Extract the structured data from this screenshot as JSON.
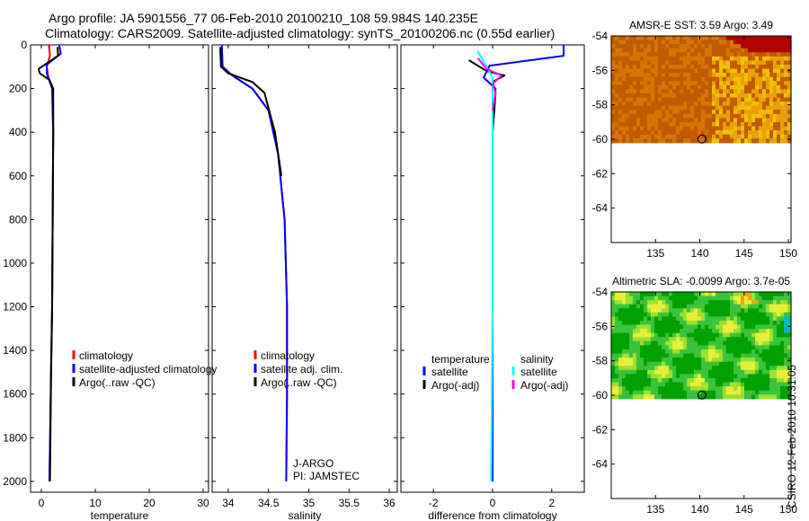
{
  "header": {
    "line1": "Argo profile: JA 5901556_77 06-Feb-2010 20100210_108 59.984S 140.235E",
    "line2": "Climatology: CARS2009. Satellite-adjusted climatology: synTS_20100206.nc (0.55d earlier)"
  },
  "stamp": "CSIRO 12-Feb-2010 10:31:05",
  "chart_data": [
    {
      "type": "line",
      "panel": "temperature",
      "xlabel": "temperature",
      "ylabel": "",
      "xlim": [
        -2,
        31
      ],
      "ylim": [
        2050,
        0
      ],
      "xticks": [
        0,
        10,
        20,
        30
      ],
      "yticks": [
        0,
        200,
        400,
        600,
        800,
        1000,
        1200,
        1400,
        1600,
        1800,
        2000
      ],
      "legend": [
        "climatology",
        "satellite-adjusted climatology",
        "Argo(..raw -QC)"
      ],
      "legend_placement": "lower-middle",
      "series": [
        {
          "name": "climatology",
          "color": "#ff0000",
          "points": [
            [
              1.4,
              0
            ],
            [
              1.6,
              50
            ],
            [
              1.0,
              100
            ],
            [
              1.3,
              150
            ],
            [
              2.0,
              200
            ],
            [
              2.2,
              400
            ],
            [
              2.1,
              800
            ],
            [
              2.0,
              1200
            ],
            [
              1.8,
              1500
            ],
            [
              1.5,
              2000
            ]
          ]
        },
        {
          "name": "satellite-adjusted climatology",
          "color": "#0000ff",
          "points": [
            [
              3.3,
              0
            ],
            [
              3.6,
              40
            ],
            [
              1.0,
              90
            ],
            [
              1.0,
              130
            ],
            [
              2.0,
              200
            ],
            [
              2.2,
              400
            ],
            [
              2.1,
              800
            ],
            [
              2.0,
              1200
            ],
            [
              1.8,
              1500
            ],
            [
              1.5,
              2000
            ]
          ]
        },
        {
          "name": "Argo(..raw -QC)",
          "color": "#000000",
          "points": [
            [
              3.0,
              10
            ],
            [
              3.1,
              50
            ],
            [
              -0.5,
              110
            ],
            [
              -0.3,
              130
            ],
            [
              1.5,
              160
            ],
            [
              2.2,
              200
            ],
            [
              2.2,
              400
            ],
            [
              2.1,
              800
            ],
            [
              2.0,
              1200
            ],
            [
              1.8,
              1500
            ],
            [
              1.6,
              2000
            ]
          ]
        }
      ]
    },
    {
      "type": "line",
      "panel": "salinity",
      "xlabel": "salinity",
      "xlim": [
        33.8,
        36.1
      ],
      "ylim": [
        2050,
        0
      ],
      "xticks": [
        34,
        34.5,
        35,
        35.5,
        36
      ],
      "legend": [
        "climatology",
        "satellite adj. clim.",
        "Argo(..raw -QC)"
      ],
      "legend_placement": "lower-middle",
      "annotation": [
        "J-ARGO",
        "PI: JAMSTEC"
      ],
      "series": [
        {
          "name": "climatology",
          "color": "#ff0000",
          "points": [
            [
              33.92,
              0
            ],
            [
              33.93,
              100
            ],
            [
              34.05,
              140
            ],
            [
              34.3,
              200
            ],
            [
              34.5,
              300
            ],
            [
              34.62,
              500
            ],
            [
              34.7,
              800
            ],
            [
              34.73,
              1200
            ],
            [
              34.73,
              1600
            ],
            [
              34.72,
              2000
            ]
          ]
        },
        {
          "name": "satellite adj. clim.",
          "color": "#0000ff",
          "points": [
            [
              33.92,
              0
            ],
            [
              33.93,
              100
            ],
            [
              34.05,
              140
            ],
            [
              34.3,
              200
            ],
            [
              34.5,
              300
            ],
            [
              34.62,
              500
            ],
            [
              34.7,
              800
            ],
            [
              34.73,
              1200
            ],
            [
              34.73,
              1600
            ],
            [
              34.72,
              2000
            ]
          ]
        },
        {
          "name": "Argo(..raw -QC)",
          "color": "#000000",
          "points": [
            [
              33.9,
              10
            ],
            [
              33.91,
              100
            ],
            [
              34.0,
              130
            ],
            [
              34.3,
              170
            ],
            [
              34.45,
              220
            ],
            [
              34.58,
              400
            ],
            [
              34.66,
              600
            ]
          ]
        }
      ]
    },
    {
      "type": "line",
      "panel": "difference",
      "xlabel": "difference from climatology",
      "xlim": [
        -3.1,
        3.1
      ],
      "ylim": [
        2050,
        0
      ],
      "xticks": [
        -2,
        0,
        2
      ],
      "legend_groups": [
        {
          "title": "temperature",
          "items": [
            "satellite",
            "Argo(-adj)"
          ]
        },
        {
          "title": "salinity",
          "items": [
            "satellite",
            "Argo(-adj)"
          ]
        }
      ],
      "series": [
        {
          "name": "temperature satellite",
          "color": "#0000ff",
          "points": [
            [
              2.4,
              0
            ],
            [
              2.4,
              50
            ],
            [
              -0.1,
              95
            ],
            [
              -0.3,
              150
            ],
            [
              0.1,
              200
            ],
            [
              0.0,
              400
            ],
            [
              0.0,
              800
            ],
            [
              0.0,
              2000
            ]
          ]
        },
        {
          "name": "temperature Argo(-adj)",
          "color": "#000000",
          "points": [
            [
              -0.8,
              70
            ],
            [
              -0.2,
              120
            ],
            [
              0.4,
              140
            ],
            [
              0.0,
              170
            ],
            [
              0.1,
              220
            ],
            [
              0.0,
              400
            ]
          ]
        },
        {
          "name": "salinity satellite",
          "color": "#00ffff",
          "points": [
            [
              -0.5,
              30
            ],
            [
              -0.2,
              100
            ],
            [
              0.0,
              150
            ],
            [
              0.0,
              400
            ],
            [
              0.0,
              1200
            ],
            [
              -0.05,
              2000
            ]
          ]
        },
        {
          "name": "salinity Argo(-adj)",
          "color": "#ff00ff",
          "points": [
            [
              -0.5,
              60
            ],
            [
              -0.2,
              110
            ],
            [
              0.3,
              140
            ],
            [
              0.0,
              180
            ],
            [
              0.1,
              220
            ],
            [
              0.0,
              300
            ]
          ]
        }
      ]
    },
    {
      "type": "heatmap",
      "panel": "sst",
      "title": "AMSR-E SST: 3.59 Argo: 3.49",
      "xlim": [
        130,
        150.3
      ],
      "ylim": [
        -66,
        -54
      ],
      "xticks": [
        135,
        140,
        145,
        150
      ],
      "yticks": [
        -54,
        -56,
        -58,
        -60,
        -62,
        -64
      ],
      "data_extent_lat": [
        -60.2,
        -54
      ],
      "colormap": [
        "#c05a00",
        "#d77500",
        "#e7a100",
        "#f1c200",
        "#b30000"
      ],
      "marker": {
        "lon": 140.235,
        "lat": -59.984
      }
    },
    {
      "type": "heatmap",
      "panel": "sla",
      "title": "Altimetric SLA: -0.0099 Argo: 3.7e-05",
      "xlim": [
        130,
        150.3
      ],
      "ylim": [
        -66,
        -54
      ],
      "xticks": [
        135,
        140,
        145,
        150
      ],
      "yticks": [
        -54,
        -56,
        -58,
        -60,
        -62,
        -64
      ],
      "data_extent_lat": [
        -60.2,
        -54
      ],
      "colormap": [
        "#00a000",
        "#3cc23c",
        "#9de12c",
        "#e9ee3a",
        "#f0a500",
        "#00b8b8"
      ],
      "marker": {
        "lon": 140.235,
        "lat": -59.984
      }
    }
  ]
}
